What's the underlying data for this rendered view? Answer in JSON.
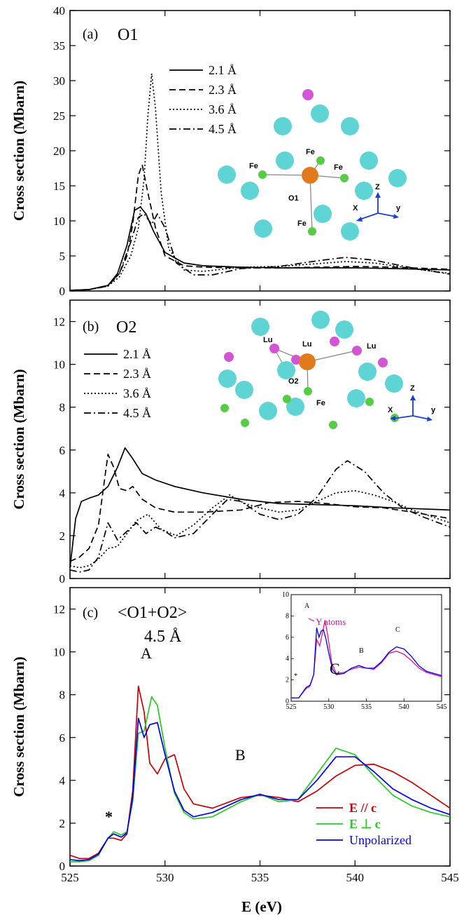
{
  "xlabel": "E (eV)",
  "colors": {
    "E_par_c": "#cc0000",
    "E_perp_c": "#22cc22",
    "unpolarized": "#0000ee",
    "y_atoms": "#ee1188",
    "O": "#e07a1a",
    "Lu": "#d455d4",
    "Fe": "#55cc44",
    "large_atom": "#5fd4d4",
    "axis": "#1a3fd6"
  },
  "chart_data": [
    {
      "type": "line",
      "panel_label": "(a)",
      "site": "O1",
      "ylabel": "Cross section (Mbarn)",
      "xlim": [
        525,
        545
      ],
      "ylim": [
        0,
        40
      ],
      "yticks": [
        0,
        5,
        10,
        15,
        20,
        25,
        30,
        35,
        40
      ],
      "xticks": [
        525,
        530,
        535,
        540,
        545
      ],
      "legend": [
        "2.1 Å",
        "2.3 Å",
        "3.6 Å",
        "4.5 Å"
      ],
      "inset_labels": [
        "Fe",
        "Fe",
        "Fe",
        "Fe",
        "O1",
        "Z",
        "X",
        "y"
      ],
      "series": [
        {
          "name": "2.1 Å",
          "dash": "solid",
          "x": [
            525,
            526,
            527,
            527.5,
            528,
            528.4,
            528.7,
            529,
            529.4,
            530,
            531,
            532,
            534,
            536,
            538,
            540,
            542,
            545
          ],
          "y": [
            0.1,
            0.2,
            0.8,
            2.5,
            6.5,
            11.5,
            12,
            11,
            8.5,
            5.5,
            4,
            3.6,
            3.4,
            3.3,
            3.3,
            3.3,
            3.2,
            3.0
          ]
        },
        {
          "name": "2.3 Å",
          "dash": "dash",
          "x": [
            525,
            526,
            527,
            527.6,
            528,
            528.3,
            528.6,
            528.8,
            529.1,
            529.5,
            530,
            531,
            532,
            534,
            536,
            538,
            540,
            542,
            545
          ],
          "y": [
            0.1,
            0.2,
            0.8,
            2.5,
            5,
            9.5,
            16.5,
            18,
            14,
            9,
            5,
            3.6,
            3.4,
            3.3,
            3.3,
            3.4,
            3.5,
            3.4,
            3.1
          ]
        },
        {
          "name": "3.6 Å",
          "dash": "dot",
          "x": [
            525,
            526,
            527,
            527.6,
            528.2,
            528.6,
            528.9,
            529.1,
            529.3,
            529.5,
            529.8,
            530.2,
            531,
            532,
            534,
            536,
            538,
            539.5,
            541,
            543,
            545
          ],
          "y": [
            0.1,
            0.2,
            0.7,
            2,
            5,
            9,
            16,
            25,
            31,
            26,
            14,
            6,
            3,
            2.8,
            3.4,
            3.5,
            3.9,
            4.2,
            4,
            3.2,
            2.5
          ]
        },
        {
          "name": "4.5 Å",
          "dash": "dashdot",
          "x": [
            525,
            526,
            527,
            527.6,
            528.2,
            528.6,
            528.9,
            529.3,
            529.6,
            530,
            530.6,
            531.5,
            532.5,
            534,
            536,
            538,
            539.5,
            541,
            543,
            545
          ],
          "y": [
            0.1,
            0.2,
            0.7,
            2.5,
            7,
            10.5,
            11,
            9.5,
            11,
            9,
            4,
            2.3,
            2.3,
            3.2,
            3.5,
            4.3,
            4.8,
            4.4,
            3.3,
            2.4
          ]
        }
      ]
    },
    {
      "type": "line",
      "panel_label": "(b)",
      "site": "O2",
      "ylabel": "Cross section (Mbarn)",
      "xlim": [
        525,
        545
      ],
      "ylim": [
        0,
        13
      ],
      "yticks": [
        0,
        2,
        4,
        6,
        8,
        10,
        12
      ],
      "xticks": [
        525,
        530,
        535,
        540,
        545
      ],
      "legend": [
        "2.1 Å",
        "2.3 Å",
        "3.6 Å",
        "4.5 Å"
      ],
      "inset_labels": [
        "Lu",
        "Lu",
        "Lu",
        "O2",
        "Fe",
        "Z",
        "X",
        "y"
      ],
      "series": [
        {
          "name": "2.1 Å",
          "dash": "solid",
          "x": [
            525,
            525.3,
            525.6,
            526,
            526.5,
            527,
            527.5,
            527.9,
            528.3,
            528.8,
            529.5,
            530.5,
            532,
            534,
            536,
            538,
            540,
            542,
            545
          ],
          "y": [
            0.5,
            2.8,
            3.6,
            3.75,
            3.9,
            4.3,
            5.2,
            6.1,
            5.6,
            4.9,
            4.6,
            4.3,
            4.0,
            3.7,
            3.5,
            3.45,
            3.4,
            3.3,
            3.2
          ]
        },
        {
          "name": "2.3 Å",
          "dash": "dash",
          "x": [
            525,
            525.5,
            526,
            526.5,
            526.8,
            527,
            527.3,
            527.6,
            528,
            528.3,
            528.8,
            529.5,
            530.5,
            532,
            534,
            535.5,
            537,
            538.5,
            540,
            541.5,
            543,
            545
          ],
          "y": [
            0.8,
            1.0,
            1.4,
            2.5,
            4.5,
            5.8,
            5.2,
            4.2,
            4.1,
            4.3,
            3.7,
            3.3,
            3.1,
            3.1,
            3.2,
            3.55,
            3.6,
            3.5,
            3.35,
            3.3,
            3.1,
            2.8
          ]
        },
        {
          "name": "3.6 Å",
          "dash": "dot",
          "x": [
            525,
            525.5,
            526,
            526.5,
            527,
            527.5,
            528,
            528.5,
            529.1,
            529.8,
            530.6,
            531.5,
            532.5,
            533.4,
            534.2,
            535,
            536,
            537,
            538,
            539,
            540,
            541,
            542,
            543,
            545
          ],
          "y": [
            0.6,
            0.5,
            0.6,
            0.9,
            1.4,
            1.5,
            2.1,
            2.7,
            3.0,
            2.3,
            2.0,
            2.5,
            3.3,
            3.9,
            3.5,
            3.3,
            3.1,
            3.2,
            3.6,
            4.0,
            4.1,
            3.9,
            3.6,
            3.2,
            2.6
          ]
        },
        {
          "name": "4.5 Å",
          "dash": "dashdot",
          "x": [
            525,
            525.5,
            526,
            526.5,
            527,
            527.5,
            528,
            528.5,
            529,
            529.5,
            530,
            530.5,
            531.5,
            532.5,
            533.3,
            534,
            535,
            536,
            537,
            538,
            539,
            539.6,
            540.5,
            541.5,
            542.5,
            543.5,
            545
          ],
          "y": [
            0.4,
            0.3,
            0.4,
            1.0,
            2.6,
            1.8,
            2.2,
            2.6,
            2.1,
            2.4,
            2.2,
            1.9,
            2.1,
            3.0,
            3.7,
            3.6,
            3.0,
            2.75,
            3.0,
            3.8,
            5.1,
            5.5,
            5.0,
            4.0,
            3.3,
            2.9,
            2.4
          ]
        }
      ]
    },
    {
      "type": "line",
      "panel_label": "(c)",
      "title": "<O1+O2>",
      "subtitle": "4.5 Å",
      "ylabel": "Cross section (Mbarn)",
      "xlabel": "E (eV)",
      "xlim": [
        525,
        545
      ],
      "ylim": [
        0,
        13
      ],
      "yticks": [
        0,
        2,
        4,
        6,
        8,
        10,
        12
      ],
      "xticks": [
        525,
        530,
        535,
        540,
        545
      ],
      "annotations": [
        "*",
        "A",
        "B",
        "C"
      ],
      "legend": [
        "E // c",
        "E ⊥ c",
        "Unpolarized"
      ],
      "series": [
        {
          "name": "E // c",
          "key": "E_par_c",
          "x": [
            525,
            525.5,
            526,
            526.5,
            527,
            527.3,
            527.7,
            528,
            528.3,
            528.6,
            528.9,
            529.2,
            529.6,
            530,
            530.5,
            531,
            531.5,
            532.5,
            534,
            535,
            536,
            537,
            538,
            539,
            540,
            541,
            542,
            543,
            544,
            545
          ],
          "y": [
            0.5,
            0.35,
            0.35,
            0.6,
            1.3,
            1.3,
            1.2,
            1.5,
            3.5,
            8.4,
            7.2,
            4.8,
            4.3,
            5.0,
            5.2,
            3.6,
            2.9,
            2.7,
            3.2,
            3.3,
            3.2,
            3.0,
            3.5,
            4.2,
            4.7,
            4.75,
            4.4,
            3.9,
            3.3,
            2.7
          ]
        },
        {
          "name": "E ⊥ c",
          "key": "E_perp_c",
          "x": [
            525,
            525.5,
            526,
            526.5,
            527,
            527.3,
            527.7,
            528,
            528.3,
            528.6,
            528.9,
            529.3,
            529.6,
            530,
            530.5,
            531,
            531.5,
            532.5,
            534,
            535,
            536,
            537,
            538,
            539,
            540,
            541,
            542,
            543,
            544,
            545
          ],
          "y": [
            0.2,
            0.2,
            0.25,
            0.5,
            1.3,
            1.6,
            1.45,
            1.6,
            3.0,
            6.2,
            6.3,
            7.9,
            7.5,
            5.5,
            3.4,
            2.5,
            2.2,
            2.3,
            3.0,
            3.35,
            3.0,
            3.1,
            4.3,
            5.5,
            5.2,
            4.2,
            3.3,
            2.8,
            2.5,
            2.3
          ]
        },
        {
          "name": "Unpolarized",
          "key": "unpolarized",
          "x": [
            525,
            525.5,
            526,
            526.5,
            527,
            527.3,
            527.7,
            528,
            528.3,
            528.6,
            528.9,
            529.2,
            529.6,
            530,
            530.5,
            531,
            531.5,
            532.5,
            534,
            535,
            536,
            537,
            538,
            539,
            540,
            541,
            542,
            543,
            544,
            545
          ],
          "y": [
            0.3,
            0.25,
            0.3,
            0.55,
            1.3,
            1.5,
            1.35,
            1.55,
            3.2,
            6.9,
            6.0,
            6.6,
            6.7,
            5.2,
            3.5,
            2.6,
            2.3,
            2.5,
            3.1,
            3.35,
            3.1,
            3.1,
            4.0,
            5.1,
            5.1,
            4.4,
            3.6,
            3.1,
            2.7,
            2.4
          ]
        }
      ],
      "inset": {
        "type": "line",
        "xlim": [
          525,
          545
        ],
        "ylim": [
          0,
          10
        ],
        "xticks": [
          525,
          530,
          535,
          540,
          545
        ],
        "yticks": [
          0,
          2,
          4,
          6,
          8,
          10
        ],
        "annotations": [
          "*",
          "A",
          "B",
          "C"
        ],
        "label": "Y atoms",
        "series": [
          {
            "name": "Y atoms",
            "key": "y_atoms",
            "x": [
              525,
              526,
              527,
              527.5,
              528,
              528.4,
              528.8,
              529.2,
              529.5,
              529.9,
              530.4,
              531,
              532,
              533,
              534,
              535,
              536,
              537,
              538,
              539,
              540,
              541,
              542,
              543,
              545
            ],
            "y": [
              0.3,
              0.3,
              1.2,
              1.4,
              2.5,
              5.8,
              5.2,
              6.6,
              7.6,
              6.0,
              3.6,
              2.6,
              2.7,
              3.0,
              3.2,
              3.1,
              3.0,
              3.6,
              4.5,
              4.7,
              4.4,
              3.8,
              3.1,
              2.7,
              2.3
            ]
          },
          {
            "name": "Unpolarized",
            "key": "unpolarized",
            "x": [
              525,
              526,
              527,
              527.5,
              528,
              528.4,
              528.7,
              529,
              529.3,
              529.6,
              530,
              530.5,
              531,
              532,
              533,
              534,
              535,
              536,
              537,
              538,
              539,
              540,
              541,
              542,
              543,
              545
            ],
            "y": [
              0.3,
              0.3,
              1.3,
              1.5,
              2.5,
              6.9,
              6.0,
              6.6,
              6.7,
              5.9,
              4.5,
              3.0,
              2.5,
              2.6,
              3.1,
              3.35,
              3.1,
              3.1,
              3.7,
              4.6,
              5.1,
              4.9,
              4.2,
              3.3,
              2.8,
              2.4
            ]
          }
        ]
      }
    }
  ]
}
